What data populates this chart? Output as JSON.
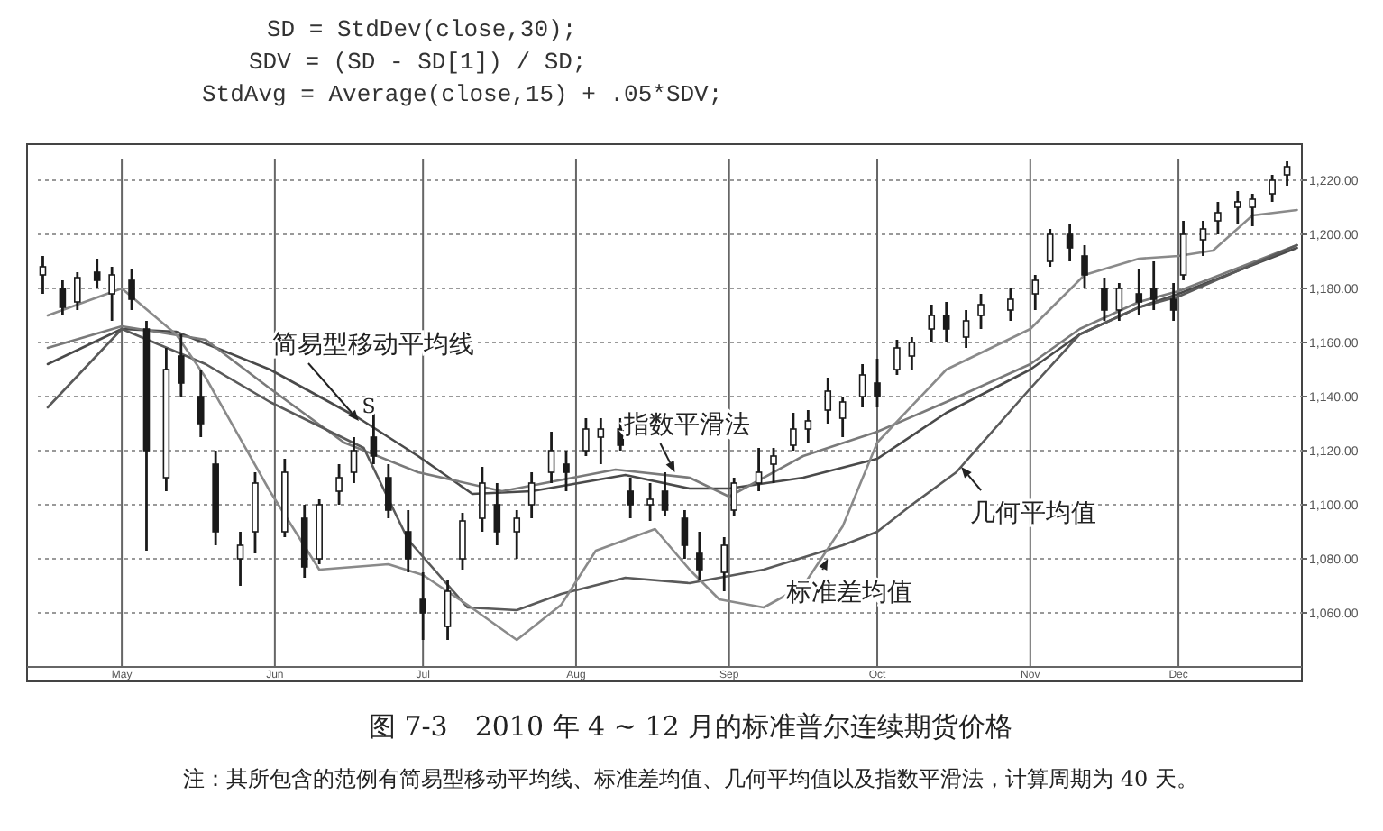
{
  "chart_data": {
    "type": "candlestick",
    "title": "图 7-3　2010 年 4 ~ 12 月的标准普尔连续期货价格",
    "annotations": [
      "SD = StdDev(close,30);",
      "SDV = (SD - SD[1]) / SD;",
      "StdAvg = Average(close,15) + .05*SDV;",
      {
        "text": "简易型移动平均线",
        "x": "2010-06-18",
        "y": 1131
      },
      {
        "text": "S",
        "x": "2010-06-20",
        "y": 1134
      },
      {
        "text": "指数平滑法",
        "x": "2010-08-21",
        "y": 1112
      },
      {
        "text": "几何平均值",
        "x": "2010-10-18",
        "y": 1114
      },
      {
        "text": "标准差均值",
        "x": "2010-09-21",
        "y": 1080
      },
      "注：其所包含的范例有简易型移动平均线、标准差均值、几何平均值以及指数平滑法，计算周期为 40 天。"
    ],
    "x": [
      "2010-04-15",
      "2010-04-19",
      "2010-04-22",
      "2010-04-26",
      "2010-04-29",
      "2010-05-03",
      "2010-05-06",
      "2010-05-10",
      "2010-05-13",
      "2010-05-17",
      "2010-05-20",
      "2010-05-25",
      "2010-05-28",
      "2010-06-03",
      "2010-06-07",
      "2010-06-10",
      "2010-06-14",
      "2010-06-17",
      "2010-06-21",
      "2010-06-24",
      "2010-06-28",
      "2010-07-01",
      "2010-07-06",
      "2010-07-09",
      "2010-07-13",
      "2010-07-16",
      "2010-07-20",
      "2010-07-23",
      "2010-07-27",
      "2010-07-30",
      "2010-08-03",
      "2010-08-06",
      "2010-08-10",
      "2010-08-12",
      "2010-08-16",
      "2010-08-19",
      "2010-08-23",
      "2010-08-26",
      "2010-08-31",
      "2010-09-02",
      "2010-09-07",
      "2010-09-10",
      "2010-09-14",
      "2010-09-17",
      "2010-09-21",
      "2010-09-24",
      "2010-09-28",
      "2010-10-01",
      "2010-10-05",
      "2010-10-08",
      "2010-10-12",
      "2010-10-15",
      "2010-10-19",
      "2010-10-22",
      "2010-10-28",
      "2010-11-02",
      "2010-11-05",
      "2010-11-09",
      "2010-11-12",
      "2010-11-16",
      "2010-11-19",
      "2010-11-23",
      "2010-11-26",
      "2010-11-30",
      "2010-12-02",
      "2010-12-06",
      "2010-12-09",
      "2010-12-13",
      "2010-12-16",
      "2010-12-20",
      "2010-12-23"
    ],
    "ohlc": [
      [
        1185,
        1192,
        1178,
        1188
      ],
      [
        1180,
        1183,
        1170,
        1173
      ],
      [
        1175,
        1186,
        1172,
        1184
      ],
      [
        1186,
        1191,
        1180,
        1183
      ],
      [
        1178,
        1188,
        1168,
        1185
      ],
      [
        1183,
        1187,
        1172,
        1176
      ],
      [
        1165,
        1168,
        1083,
        1120
      ],
      [
        1110,
        1158,
        1105,
        1150
      ],
      [
        1155,
        1163,
        1140,
        1145
      ],
      [
        1140,
        1150,
        1125,
        1130
      ],
      [
        1115,
        1120,
        1085,
        1090
      ],
      [
        1080,
        1090,
        1070,
        1085
      ],
      [
        1090,
        1112,
        1082,
        1108
      ],
      [
        1090,
        1117,
        1088,
        1112
      ],
      [
        1095,
        1100,
        1073,
        1077
      ],
      [
        1080,
        1102,
        1078,
        1100
      ],
      [
        1105,
        1115,
        1100,
        1110
      ],
      [
        1112,
        1125,
        1108,
        1120
      ],
      [
        1125,
        1135,
        1115,
        1118
      ],
      [
        1110,
        1115,
        1095,
        1098
      ],
      [
        1090,
        1098,
        1075,
        1080
      ],
      [
        1065,
        1075,
        1050,
        1060
      ],
      [
        1055,
        1072,
        1050,
        1068
      ],
      [
        1080,
        1097,
        1076,
        1094
      ],
      [
        1095,
        1114,
        1090,
        1108
      ],
      [
        1100,
        1108,
        1085,
        1090
      ],
      [
        1090,
        1098,
        1080,
        1095
      ],
      [
        1100,
        1112,
        1095,
        1108
      ],
      [
        1112,
        1127,
        1108,
        1120
      ],
      [
        1115,
        1120,
        1105,
        1112
      ],
      [
        1120,
        1132,
        1118,
        1128
      ],
      [
        1125,
        1132,
        1115,
        1128
      ],
      [
        1128,
        1132,
        1120,
        1122
      ],
      [
        1105,
        1110,
        1095,
        1100
      ],
      [
        1100,
        1108,
        1094,
        1102
      ],
      [
        1105,
        1112,
        1096,
        1098
      ],
      [
        1095,
        1098,
        1080,
        1085
      ],
      [
        1082,
        1090,
        1072,
        1076
      ],
      [
        1075,
        1088,
        1068,
        1085
      ],
      [
        1098,
        1110,
        1096,
        1108
      ],
      [
        1108,
        1121,
        1105,
        1112
      ],
      [
        1115,
        1121,
        1108,
        1118
      ],
      [
        1122,
        1134,
        1120,
        1128
      ],
      [
        1128,
        1135,
        1123,
        1131
      ],
      [
        1135,
        1147,
        1130,
        1142
      ],
      [
        1132,
        1140,
        1125,
        1138
      ],
      [
        1140,
        1152,
        1136,
        1148
      ],
      [
        1145,
        1154,
        1136,
        1140
      ],
      [
        1150,
        1161,
        1148,
        1158
      ],
      [
        1155,
        1162,
        1150,
        1160
      ],
      [
        1165,
        1174,
        1160,
        1170
      ],
      [
        1170,
        1175,
        1160,
        1165
      ],
      [
        1162,
        1172,
        1158,
        1168
      ],
      [
        1170,
        1178,
        1165,
        1174
      ],
      [
        1172,
        1180,
        1168,
        1176
      ],
      [
        1178,
        1185,
        1172,
        1183
      ],
      [
        1190,
        1202,
        1188,
        1200
      ],
      [
        1200,
        1204,
        1190,
        1195
      ],
      [
        1192,
        1196,
        1180,
        1185
      ],
      [
        1180,
        1184,
        1168,
        1172
      ],
      [
        1172,
        1182,
        1168,
        1180
      ],
      [
        1178,
        1187,
        1170,
        1175
      ],
      [
        1180,
        1190,
        1172,
        1176
      ],
      [
        1176,
        1182,
        1168,
        1172
      ],
      [
        1185,
        1205,
        1183,
        1200
      ],
      [
        1198,
        1205,
        1192,
        1202
      ],
      [
        1205,
        1212,
        1200,
        1208
      ],
      [
        1210,
        1216,
        1204,
        1212
      ],
      [
        1210,
        1215,
        1203,
        1213
      ],
      [
        1215,
        1222,
        1212,
        1220
      ],
      [
        1222,
        1227,
        1218,
        1225
      ]
    ],
    "color": "#1a1a1a",
    "series": [
      {
        "type": "line",
        "color": "#4a4a4a",
        "x": [
          "2010-04-16",
          "2010-05-01",
          "2010-05-12",
          "2010-05-31",
          "2010-06-18",
          "2010-06-30",
          "2010-07-11",
          "2010-07-23",
          "2010-08-11",
          "2010-08-24",
          "2010-09-01",
          "2010-09-16",
          "2010-10-01",
          "2010-10-15",
          "2010-11-01",
          "2010-11-11",
          "2010-11-23",
          "2010-12-01",
          "2010-12-25"
        ],
        "values": [
          1152,
          1165,
          1164,
          1150,
          1132,
          1118,
          1104,
          1105,
          1111,
          1106,
          1106,
          1110,
          1117,
          1134,
          1150,
          1163,
          1173,
          1178,
          1195
        ]
      },
      {
        "type": "line",
        "color": "#7a7a7a",
        "x": [
          "2010-04-16",
          "2010-05-01",
          "2010-05-18",
          "2010-05-31",
          "2010-06-15",
          "2010-06-30",
          "2010-07-17",
          "2010-08-09",
          "2010-08-24",
          "2010-09-01",
          "2010-09-16",
          "2010-10-01",
          "2010-10-15",
          "2010-11-01",
          "2010-11-11",
          "2010-11-23",
          "2010-12-01",
          "2010-12-25"
        ],
        "values": [
          1158,
          1166,
          1161,
          1143,
          1123,
          1112,
          1105,
          1113,
          1110,
          1103,
          1118,
          1127,
          1138,
          1152,
          1165,
          1175,
          1179,
          1196
        ]
      },
      {
        "type": "line",
        "color": "#5a5a5a",
        "x": [
          "2010-04-16",
          "2010-05-01",
          "2010-05-18",
          "2010-05-31",
          "2010-06-19",
          "2010-06-28",
          "2010-07-10",
          "2010-07-20",
          "2010-07-29",
          "2010-08-11",
          "2010-08-24",
          "2010-09-08",
          "2010-09-24",
          "2010-10-01",
          "2010-10-08",
          "2010-10-17",
          "2010-11-01",
          "2010-11-11",
          "2010-11-23",
          "2010-12-01",
          "2010-12-25"
        ],
        "values": [
          1136,
          1165,
          1152,
          1138,
          1121,
          1087,
          1062,
          1061,
          1067,
          1073,
          1071,
          1076,
          1085,
          1090,
          1100,
          1112,
          1143,
          1163,
          1173,
          1177,
          1196
        ]
      },
      {
        "type": "line",
        "color": "#8a8a8a",
        "x": [
          "2010-04-16",
          "2010-05-01",
          "2010-05-12",
          "2010-05-18",
          "2010-05-31",
          "2010-06-10",
          "2010-06-24",
          "2010-07-01",
          "2010-07-10",
          "2010-07-20",
          "2010-07-29",
          "2010-08-05",
          "2010-08-17",
          "2010-08-24",
          "2010-08-30",
          "2010-09-08",
          "2010-09-16",
          "2010-09-24",
          "2010-10-01",
          "2010-10-15",
          "2010-11-01",
          "2010-11-12",
          "2010-11-23",
          "2010-12-01",
          "2010-12-08",
          "2010-12-16",
          "2010-12-25"
        ],
        "values": [
          1170,
          1180,
          1163,
          1147,
          1105,
          1076,
          1078,
          1074,
          1063,
          1050,
          1063,
          1083,
          1091,
          1076,
          1065,
          1062,
          1070,
          1092,
          1123,
          1150,
          1165,
          1185,
          1191,
          1192,
          1194,
          1207,
          1209
        ]
      }
    ],
    "xlim": [
      "2010-04-14",
      "2010-12-26"
    ],
    "xticks": [
      {
        "value": "2010-05-01",
        "label": "May"
      },
      {
        "value": "2010-06-01",
        "label": "Jun"
      },
      {
        "value": "2010-07-01",
        "label": "Jul"
      },
      {
        "value": "2010-08-01",
        "label": "Aug"
      },
      {
        "value": "2010-09-01",
        "label": "Sep"
      },
      {
        "value": "2010-10-01",
        "label": "Oct"
      },
      {
        "value": "2010-11-01",
        "label": "Nov"
      },
      {
        "value": "2010-12-01",
        "label": "Dec"
      }
    ],
    "ylim": [
      1040,
      1228
    ],
    "yticks": [
      {
        "value": 1060,
        "label": "1,060.00"
      },
      {
        "value": 1080,
        "label": "1,080.00"
      },
      {
        "value": 1100,
        "label": "1,100.00"
      },
      {
        "value": 1120,
        "label": "1,120.00"
      },
      {
        "value": 1140,
        "label": "1,140.00"
      },
      {
        "value": 1160,
        "label": "1,160.00"
      },
      {
        "value": 1180,
        "label": "1,180.00"
      },
      {
        "value": 1200,
        "label": "1,200.00"
      },
      {
        "value": 1220,
        "label": "1,220.00"
      }
    ],
    "grid": true
  }
}
